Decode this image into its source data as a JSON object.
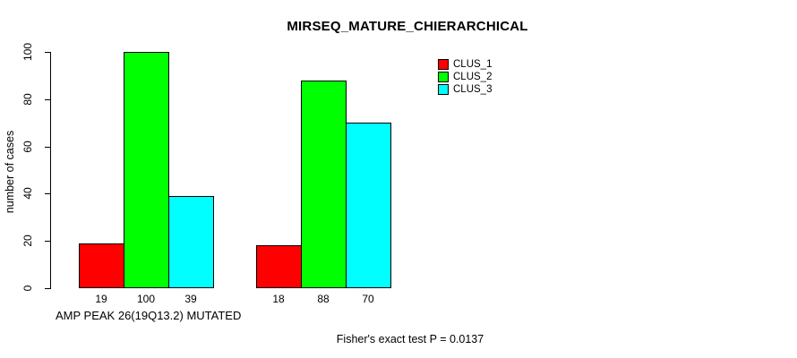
{
  "chart_data": {
    "type": "bar",
    "title": "MIRSEQ_MATURE_CHIERARCHICAL",
    "ylabel": "number of cases",
    "xlabel": "AMP PEAK 26(19Q13.2) MUTATED",
    "annotation": "Fisher's exact test P = 0.0137",
    "ylim": [
      0,
      100
    ],
    "yticks": [
      0,
      20,
      40,
      60,
      80,
      100
    ],
    "grid": false,
    "n_groups": 2,
    "series": [
      {
        "name": "CLUS_1",
        "color": "#ff0000",
        "values": [
          19,
          18
        ]
      },
      {
        "name": "CLUS_2",
        "color": "#00ff00",
        "values": [
          100,
          88
        ]
      },
      {
        "name": "CLUS_3",
        "color": "#00ffff",
        "values": [
          39,
          70
        ]
      }
    ],
    "bar_value_labels": [
      [
        "19",
        "100",
        "39"
      ],
      [
        "18",
        "88",
        "70"
      ]
    ],
    "legend": {
      "position": "top-right",
      "entries": [
        {
          "label": "CLUS_1",
          "color": "#ff0000"
        },
        {
          "label": "CLUS_2",
          "color": "#00ff00"
        },
        {
          "label": "CLUS_3",
          "color": "#00ffff"
        }
      ]
    }
  }
}
